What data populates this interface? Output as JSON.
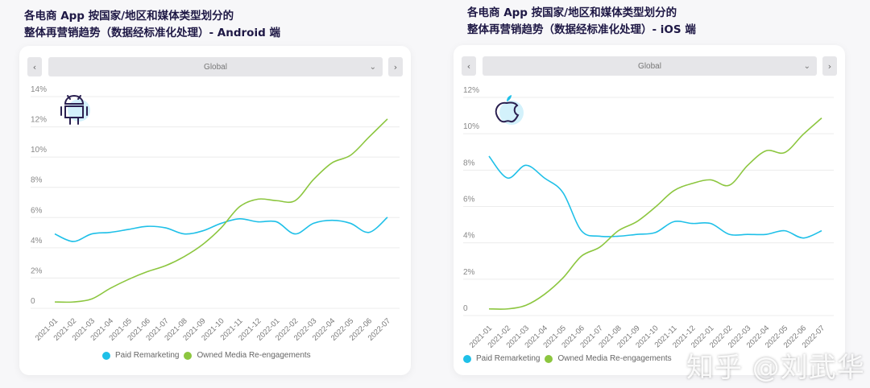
{
  "watermark": "知乎 @刘武华",
  "chart_data": [
    {
      "type": "line",
      "title_line1": "各电商 App 按国家/地区和媒体类型划分的",
      "title_line2": "整体再营销趋势（数据经标准化处理）- Android 端",
      "platform_icon": "android-icon",
      "selector": "Global",
      "prev": "‹",
      "next": "›",
      "chevron": "⌄",
      "yticks": [
        "0",
        "2%",
        "4%",
        "6%",
        "8%",
        "10%",
        "12%",
        "14%"
      ],
      "ylim": [
        0,
        14
      ],
      "categories": [
        "2021-01",
        "2021-02",
        "2021-03",
        "2021-04",
        "2021-05",
        "2021-06",
        "2021-07",
        "2021-08",
        "2021-09",
        "2021-10",
        "2021-11",
        "2021-12",
        "2022-01",
        "2022-02",
        "2022-03",
        "2022-04",
        "2022-05",
        "2022-06",
        "2022-07"
      ],
      "series": [
        {
          "name": "Paid Remarketing",
          "color": "#1fc0e8",
          "values": [
            4.6,
            4.1,
            4.6,
            4.7,
            4.9,
            5.1,
            5.0,
            4.6,
            4.8,
            5.3,
            5.6,
            5.4,
            5.4,
            4.6,
            5.3,
            5.5,
            5.3,
            4.7,
            5.7
          ]
        },
        {
          "name": "Owned Media Re-engagements",
          "color": "#8cc63f",
          "values": [
            0.1,
            0.1,
            0.3,
            1.0,
            1.6,
            2.1,
            2.5,
            3.1,
            3.9,
            5.0,
            6.4,
            6.9,
            6.8,
            6.8,
            8.2,
            9.3,
            9.8,
            11.0,
            12.2
          ]
        }
      ],
      "legend": "bottom-center"
    },
    {
      "type": "line",
      "title_line1": "各电商 App 按国家/地区和媒体类型划分的",
      "title_line2": "整体再营销趋势（数据经标准化处理）- iOS 端",
      "platform_icon": "apple-icon",
      "selector": "Global",
      "prev": "‹",
      "next": "›",
      "chevron": "⌄",
      "yticks": [
        "0",
        "2%",
        "4%",
        "6%",
        "8%",
        "10%",
        "12%"
      ],
      "ylim": [
        0,
        12
      ],
      "categories": [
        "2021-01",
        "2021-02",
        "2021-03",
        "2021-04",
        "2021-05",
        "2021-06",
        "2021-07",
        "2021-08",
        "2021-09",
        "2021-10",
        "2021-11",
        "2021-12",
        "2022-01",
        "2022-02",
        "2022-03",
        "2022-04",
        "2022-05",
        "2022-06",
        "2022-07"
      ],
      "series": [
        {
          "name": "Paid Remarketing",
          "color": "#1fc0e8",
          "values": [
            8.5,
            7.3,
            8.0,
            7.3,
            6.5,
            4.4,
            4.1,
            4.1,
            4.2,
            4.3,
            4.9,
            4.8,
            4.8,
            4.2,
            4.2,
            4.2,
            4.4,
            4.0,
            4.4
          ]
        },
        {
          "name": "Owned Media Re-engagements",
          "color": "#8cc63f",
          "values": [
            0.1,
            0.1,
            0.3,
            0.9,
            1.8,
            3.0,
            3.5,
            4.4,
            4.9,
            5.7,
            6.6,
            7.0,
            7.2,
            6.9,
            8.0,
            8.8,
            8.7,
            9.7,
            10.6
          ]
        }
      ],
      "legend": "bottom-center"
    }
  ]
}
